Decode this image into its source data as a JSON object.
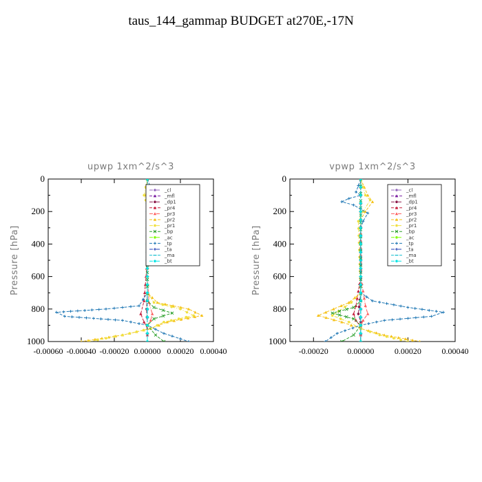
{
  "page": {
    "title": "taus_144_gammap  BUDGET at270E,-17N"
  },
  "colors": {
    "cl": "#9467bd",
    "mfl": "#7b1fa2",
    "dp1": "#8b1a4a",
    "pr4": "#c51b3a",
    "pr3": "#ff5a5a",
    "pr2": "#f6c21a",
    "pr1": "#f0e040",
    "bp": "#2ca02c",
    "ac": "#7fff00",
    "tp": "#1f77b4",
    "ta": "#1f3cb4",
    "ma": "#17becf",
    "bt": "#00e5e5"
  },
  "chart_data": [
    {
      "type": "line",
      "title": "upwp  1xm^2/s^3",
      "ylabel": "Pressure [hPa]",
      "ylim": [
        1000,
        0
      ],
      "xlim": [
        -0.0006,
        0.0004
      ],
      "xticks": [
        -0.0006,
        -0.0004,
        -0.0002,
        0.0,
        0.0002,
        0.0004
      ],
      "xtick_labels": [
        "-0.00060",
        "-0.00040",
        "-0.00020",
        "0.00000",
        "0.00020",
        "0.00040"
      ],
      "yticks": [
        0,
        200,
        400,
        600,
        800,
        1000
      ],
      "ytick_labels": [
        "0",
        "200",
        "400",
        "600",
        "800",
        "1000"
      ],
      "legend": [
        "_cl",
        "_mfl",
        "_dp1",
        "_pr4",
        "_pr3",
        "_pr2",
        "_pr1",
        "_bp",
        "_ac",
        "_tp",
        "_ta",
        "_ma",
        "_bt"
      ],
      "legend_position": "top-right",
      "series": [
        {
          "name": "_cl",
          "color_key": "cl",
          "x": [
            0,
            0,
            0,
            0,
            0,
            0,
            0,
            0,
            0,
            0,
            0,
            0
          ],
          "y": [
            0,
            100,
            200,
            300,
            400,
            500,
            600,
            700,
            800,
            900,
            950,
            1000
          ]
        },
        {
          "name": "_mfl",
          "color_key": "mfl",
          "x": [
            0,
            0,
            0,
            0,
            0,
            0,
            0,
            0,
            0,
            0,
            0,
            0
          ],
          "y": [
            0,
            100,
            200,
            300,
            400,
            500,
            600,
            700,
            800,
            900,
            950,
            1000
          ]
        },
        {
          "name": "_dp1",
          "color_key": "dp1",
          "x": [
            0,
            0,
            0,
            0,
            0,
            0,
            0,
            0,
            -5e-06,
            0,
            0,
            0
          ],
          "y": [
            0,
            100,
            200,
            300,
            400,
            500,
            600,
            700,
            800,
            900,
            950,
            1000
          ]
        },
        {
          "name": "_pr4",
          "color_key": "pr4",
          "x": [
            0,
            0,
            0,
            0,
            0,
            0,
            -2e-05,
            -4e-05,
            -2e-05,
            0,
            0,
            0
          ],
          "y": [
            0,
            100,
            200,
            300,
            400,
            500,
            750,
            830,
            880,
            920,
            960,
            1000
          ]
        },
        {
          "name": "_pr3",
          "color_key": "pr3",
          "x": [
            0,
            0,
            0,
            0,
            0,
            1e-05,
            3e-05,
            2e-05,
            0,
            0,
            0
          ],
          "y": [
            0,
            100,
            200,
            400,
            600,
            760,
            830,
            870,
            900,
            950,
            1000
          ]
        },
        {
          "name": "_pr2",
          "color_key": "pr2",
          "x": [
            0,
            -1e-05,
            0,
            0,
            0,
            6e-05,
            0.00025,
            0.00033,
            0.00012,
            2e-05,
            -0.00015,
            -0.0004
          ],
          "y": [
            0,
            100,
            130,
            200,
            700,
            760,
            800,
            840,
            880,
            920,
            960,
            1000
          ]
        },
        {
          "name": "_pr1",
          "color_key": "pr1",
          "x": [
            0,
            -2e-05,
            -1e-05,
            0,
            0,
            4e-05,
            0.0002,
            0.00028,
            0.0001,
            2e-05,
            -0.00015,
            -0.00035
          ],
          "y": [
            0,
            100,
            130,
            200,
            700,
            760,
            800,
            840,
            880,
            920,
            960,
            1000
          ]
        },
        {
          "name": "_bp",
          "color_key": "bp",
          "x": [
            0,
            0,
            0,
            4e-05,
            0.00015,
            4e-05,
            0,
            5e-05,
            0.0001
          ],
          "y": [
            0,
            400,
            750,
            790,
            825,
            860,
            900,
            960,
            1000
          ]
        },
        {
          "name": "_ac",
          "color_key": "ac",
          "x": [
            0,
            0,
            0,
            0,
            0,
            0,
            0,
            0,
            0
          ],
          "y": [
            0,
            100,
            200,
            400,
            600,
            800,
            900,
            950,
            1000
          ]
        },
        {
          "name": "_tp",
          "color_key": "tp",
          "x": [
            0,
            3e-05,
            6e-05,
            2e-05,
            0,
            0,
            -5e-05,
            -0.00025,
            -0.00055,
            -0.0005,
            -0.00015,
            0,
            0.0001,
            0.00025
          ],
          "y": [
            0,
            80,
            100,
            130,
            200,
            700,
            780,
            800,
            820,
            845,
            870,
            900,
            950,
            1000
          ]
        },
        {
          "name": "_ta",
          "color_key": "ta",
          "x": [
            0,
            0,
            0,
            0,
            0,
            0,
            0,
            0,
            0
          ],
          "y": [
            0,
            100,
            200,
            400,
            600,
            800,
            900,
            950,
            1000
          ]
        },
        {
          "name": "_ma",
          "color_key": "ma",
          "x": [
            0,
            0,
            0,
            0,
            0,
            0,
            0,
            0,
            0
          ],
          "y": [
            0,
            100,
            200,
            400,
            600,
            800,
            900,
            950,
            1000
          ]
        },
        {
          "name": "_bt",
          "color_key": "bt",
          "x": [
            0,
            0,
            0,
            0,
            0,
            0,
            0,
            0,
            0
          ],
          "y": [
            0,
            100,
            200,
            400,
            600,
            800,
            900,
            950,
            1000
          ]
        }
      ]
    },
    {
      "type": "line",
      "title": "vpwp  1xm^2/s^3",
      "ylabel": "Pressure [hPa]",
      "ylim": [
        1000,
        0
      ],
      "xlim": [
        -0.0003,
        0.0004
      ],
      "xticks": [
        -0.0002,
        0.0,
        0.0002,
        0.0004
      ],
      "xtick_labels": [
        "-0.00020",
        "0.00000",
        "0.00020",
        "0.00040"
      ],
      "yticks": [
        0,
        200,
        400,
        600,
        800,
        1000
      ],
      "ytick_labels": [
        "0",
        "200",
        "400",
        "600",
        "800",
        "1000"
      ],
      "legend": [
        "_cl",
        "_mfl",
        "_dp1",
        "_pr4",
        "_pr3",
        "_pr2",
        "_pr1",
        "_bp",
        "_ac",
        "_tp",
        "_ta",
        "_ma",
        "_bt"
      ],
      "legend_position": "top-right",
      "series": [
        {
          "name": "_cl",
          "color_key": "cl",
          "x": [
            0,
            0,
            0,
            0,
            0,
            0,
            0,
            0,
            0,
            0,
            0
          ],
          "y": [
            0,
            100,
            200,
            300,
            400,
            600,
            800,
            850,
            900,
            950,
            1000
          ]
        },
        {
          "name": "_mfl",
          "color_key": "mfl",
          "x": [
            0,
            0,
            0,
            0,
            0,
            0,
            0,
            0,
            0,
            0,
            0
          ],
          "y": [
            0,
            100,
            200,
            300,
            400,
            600,
            800,
            850,
            900,
            950,
            1000
          ]
        },
        {
          "name": "_dp1",
          "color_key": "dp1",
          "x": [
            0,
            0,
            0,
            0,
            0,
            -1e-05,
            0,
            0,
            0,
            0
          ],
          "y": [
            0,
            100,
            200,
            400,
            700,
            830,
            880,
            920,
            960,
            1000
          ]
        },
        {
          "name": "_pr4",
          "color_key": "pr4",
          "x": [
            0,
            0,
            0,
            0,
            -2e-05,
            -3e-05,
            -2e-05,
            0,
            0,
            0
          ],
          "y": [
            0,
            100,
            200,
            600,
            780,
            830,
            870,
            910,
            960,
            1000
          ]
        },
        {
          "name": "_pr3",
          "color_key": "pr3",
          "x": [
            0,
            0,
            0,
            0,
            2e-05,
            3e-05,
            1e-05,
            0,
            0,
            0
          ],
          "y": [
            0,
            100,
            200,
            600,
            780,
            830,
            870,
            910,
            960,
            1000
          ]
        },
        {
          "name": "_pr2",
          "color_key": "pr2",
          "x": [
            0,
            3e-05,
            5e-05,
            2e-05,
            0,
            0,
            -5e-05,
            -0.00018,
            -8e-05,
            0,
            0.0001,
            0.00025
          ],
          "y": [
            0,
            100,
            140,
            200,
            250,
            700,
            760,
            840,
            880,
            920,
            960,
            1000
          ]
        },
        {
          "name": "_pr1",
          "color_key": "pr1",
          "x": [
            0,
            2e-05,
            4e-05,
            1e-05,
            -1e-05,
            0,
            -4e-05,
            -0.00012,
            -5e-05,
            0,
            8e-05,
            0.0002
          ],
          "y": [
            0,
            100,
            130,
            200,
            260,
            700,
            760,
            840,
            880,
            920,
            960,
            1000
          ]
        },
        {
          "name": "_bp",
          "color_key": "bp",
          "x": [
            0,
            0,
            0,
            -3e-05,
            -0.00012,
            -3e-05,
            0,
            -3e-05,
            -8e-05
          ],
          "y": [
            0,
            400,
            750,
            790,
            825,
            860,
            900,
            960,
            1000
          ]
        },
        {
          "name": "_ac",
          "color_key": "ac",
          "x": [
            0,
            0,
            0,
            0,
            0,
            0,
            0,
            0,
            0
          ],
          "y": [
            0,
            100,
            200,
            400,
            600,
            800,
            900,
            950,
            1000
          ]
        },
        {
          "name": "_tp",
          "color_key": "tp",
          "x": [
            0,
            -2e-05,
            0,
            -5e-05,
            -8e-05,
            -3e-05,
            3e-05,
            1e-05,
            0,
            0,
            5e-05,
            0.0002,
            0.00035,
            0.0003,
            0.0001,
            0,
            -0.0001,
            -0.00015
          ],
          "y": [
            0,
            80,
            100,
            120,
            140,
            160,
            210,
            260,
            300,
            700,
            750,
            790,
            820,
            845,
            870,
            900,
            950,
            1000
          ]
        },
        {
          "name": "_ta",
          "color_key": "ta",
          "x": [
            0,
            0,
            0,
            0,
            0,
            0,
            0,
            0,
            0
          ],
          "y": [
            0,
            100,
            200,
            400,
            600,
            800,
            900,
            950,
            1000
          ]
        },
        {
          "name": "_ma",
          "color_key": "ma",
          "x": [
            0,
            0,
            0,
            0,
            0,
            0,
            0,
            0,
            0
          ],
          "y": [
            0,
            100,
            200,
            400,
            600,
            800,
            900,
            950,
            1000
          ]
        },
        {
          "name": "_bt",
          "color_key": "bt",
          "x": [
            0,
            0,
            0,
            0,
            0,
            0,
            0,
            0,
            0
          ],
          "y": [
            0,
            100,
            200,
            400,
            600,
            800,
            900,
            950,
            1000
          ]
        }
      ]
    }
  ]
}
